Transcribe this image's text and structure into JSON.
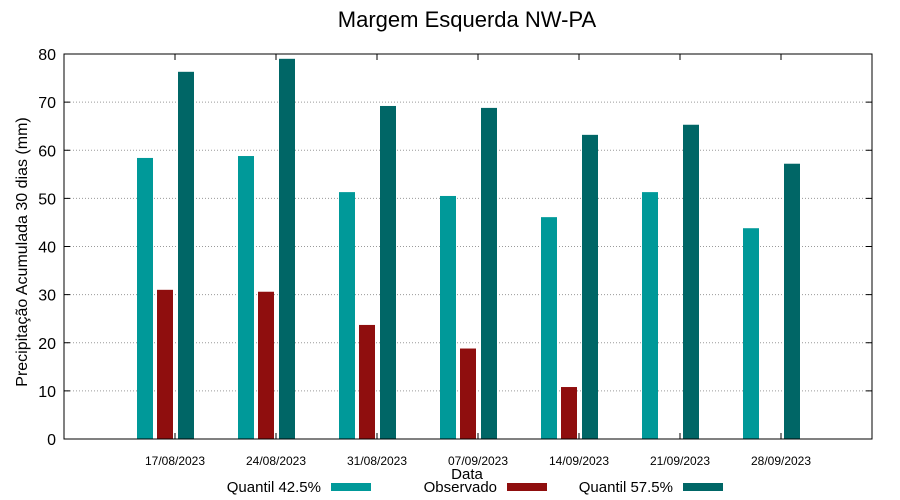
{
  "chart_data": {
    "type": "bar",
    "title": "Margem Esquerda NW-PA",
    "xlabel": "Data",
    "ylabel": "Precipitação Acumulada 30 dias (mm)",
    "ylim": [
      0,
      80
    ],
    "yticks": [
      0,
      10,
      20,
      30,
      40,
      50,
      60,
      70,
      80
    ],
    "grid": true,
    "legend_position": "bottom",
    "categories": [
      "17/08/2023",
      "24/08/2023",
      "31/08/2023",
      "07/09/2023",
      "14/09/2023",
      "21/09/2023",
      "28/09/2023"
    ],
    "series": [
      {
        "name": "Quantil 42.5%",
        "color": "#009999",
        "values": [
          58.4,
          58.8,
          51.3,
          50.5,
          46.1,
          51.3,
          43.8
        ]
      },
      {
        "name": "Observado",
        "color": "#8f0e0e",
        "values": [
          31.0,
          30.6,
          23.7,
          18.8,
          10.8,
          null,
          null
        ]
      },
      {
        "name": "Quantil 57.5%",
        "color": "#006666",
        "values": [
          76.3,
          79.0,
          69.2,
          68.8,
          63.2,
          65.3,
          57.2
        ]
      }
    ]
  }
}
